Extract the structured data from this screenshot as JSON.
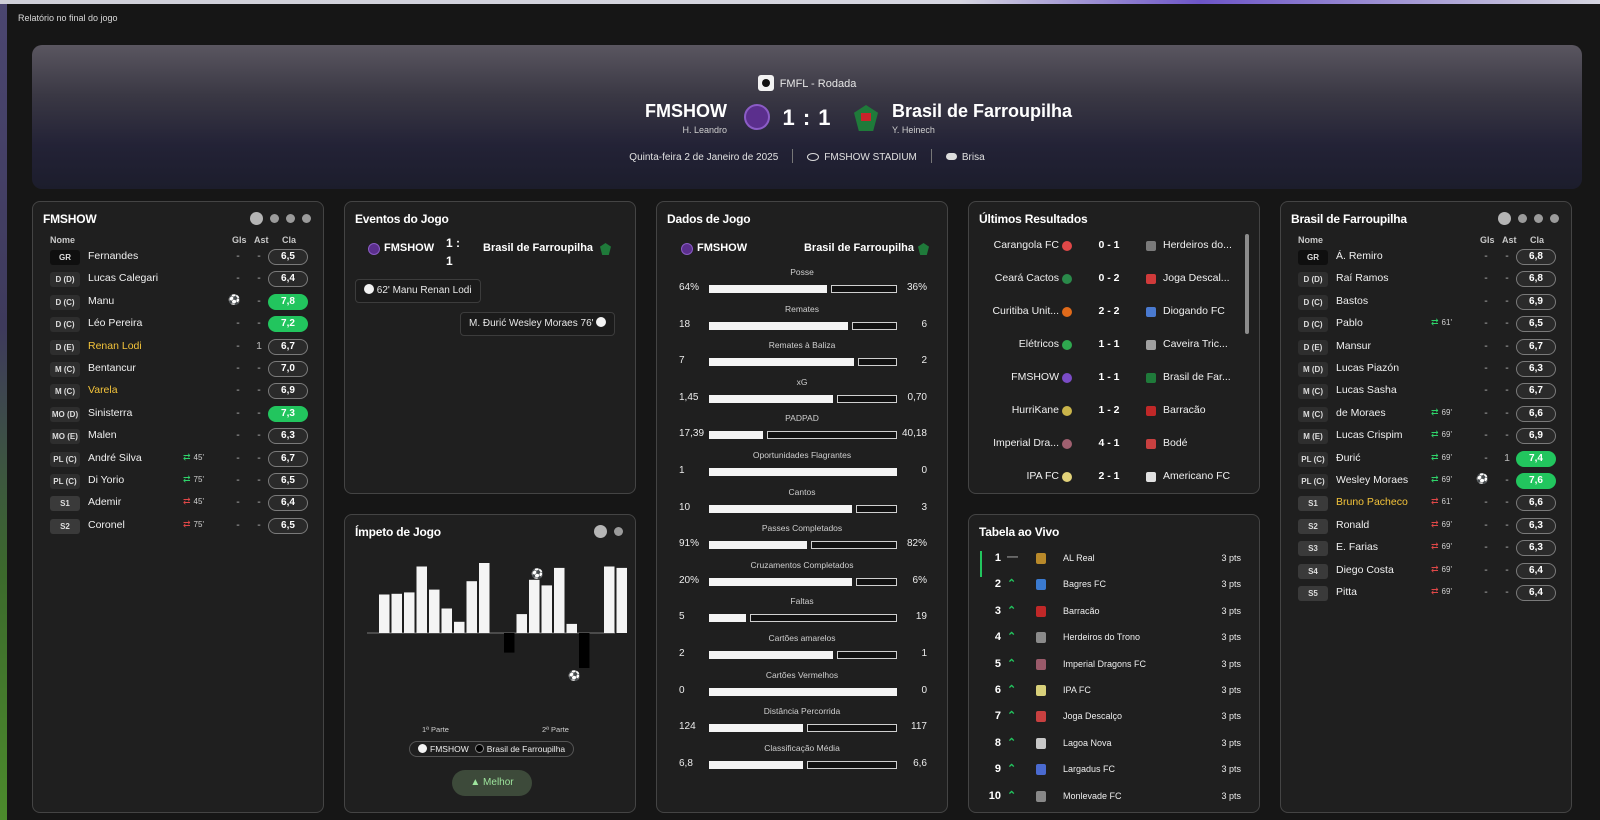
{
  "window_title": "Relatório no final do jogo",
  "header": {
    "competition": "FMFL - Rodada",
    "home": {
      "name": "FMSHOW",
      "manager": "H. Leandro"
    },
    "away": {
      "name": "Brasil de Farroupilha",
      "manager": "Y. Heinech"
    },
    "score": "1 : 1",
    "date": "Quinta-feira 2 de Janeiro de 2025",
    "stadium": "FMSHOW STADIUM",
    "weather": "Brisa"
  },
  "columns": {
    "name": "Nome",
    "goals": "Gls",
    "assists": "Ast",
    "rating": "Cla"
  },
  "home_lineup": {
    "title": "FMSHOW",
    "players": [
      {
        "pos": "GR",
        "name": "Fernandes",
        "gls": "-",
        "ast": "-",
        "rating": "6,5"
      },
      {
        "pos": "D (D)",
        "name": "Lucas Calegari",
        "gls": "-",
        "ast": "-",
        "rating": "6,4"
      },
      {
        "pos": "D (C)",
        "name": "Manu",
        "gls": "",
        "ast": "-",
        "rating": "7,8",
        "hi": true,
        "goal": true
      },
      {
        "pos": "D (C)",
        "name": "Léo Pereira",
        "gls": "-",
        "ast": "-",
        "rating": "7,2",
        "hi": true
      },
      {
        "pos": "D (E)",
        "name": "Renan Lodi",
        "gls": "-",
        "ast": "1",
        "rating": "6,7",
        "yellow": true
      },
      {
        "pos": "M (C)",
        "name": "Bentancur",
        "gls": "-",
        "ast": "-",
        "rating": "7,0"
      },
      {
        "pos": "M (C)",
        "name": "Varela",
        "gls": "-",
        "ast": "-",
        "rating": "6,9",
        "yellow": true
      },
      {
        "pos": "MO (D)",
        "name": "Sinisterra",
        "gls": "-",
        "ast": "-",
        "rating": "7,3",
        "hi": true
      },
      {
        "pos": "MO (E)",
        "name": "Malen",
        "gls": "-",
        "ast": "-",
        "rating": "6,3"
      },
      {
        "pos": "PL (C)",
        "name": "André Silva",
        "gls": "-",
        "ast": "-",
        "rating": "6,7",
        "sub": "in",
        "min": "45'"
      },
      {
        "pos": "PL (C)",
        "name": "Di Yorio",
        "gls": "-",
        "ast": "-",
        "rating": "6,5",
        "sub": "in",
        "min": "75'"
      },
      {
        "pos": "S1",
        "name": "Ademir",
        "gls": "-",
        "ast": "-",
        "rating": "6,4",
        "sub": "out",
        "min": "45'"
      },
      {
        "pos": "S2",
        "name": "Coronel",
        "gls": "-",
        "ast": "-",
        "rating": "6,5",
        "sub": "out",
        "min": "75'"
      }
    ]
  },
  "away_lineup": {
    "title": "Brasil de Farroupilha",
    "players": [
      {
        "pos": "GR",
        "name": "Á. Remiro",
        "gls": "-",
        "ast": "-",
        "rating": "6,8"
      },
      {
        "pos": "D (D)",
        "name": "Raí Ramos",
        "gls": "-",
        "ast": "-",
        "rating": "6,8"
      },
      {
        "pos": "D (C)",
        "name": "Bastos",
        "gls": "-",
        "ast": "-",
        "rating": "6,9"
      },
      {
        "pos": "D (C)",
        "name": "Pablo",
        "gls": "-",
        "ast": "-",
        "rating": "6,5",
        "sub": "in",
        "min": "61'"
      },
      {
        "pos": "D (E)",
        "name": "Mansur",
        "gls": "-",
        "ast": "-",
        "rating": "6,7"
      },
      {
        "pos": "M (D)",
        "name": "Lucas Piazón",
        "gls": "-",
        "ast": "-",
        "rating": "6,3"
      },
      {
        "pos": "M (C)",
        "name": "Lucas Sasha",
        "gls": "-",
        "ast": "-",
        "rating": "6,7"
      },
      {
        "pos": "M (C)",
        "name": "de Moraes",
        "gls": "-",
        "ast": "-",
        "rating": "6,6",
        "sub": "in",
        "min": "69'"
      },
      {
        "pos": "M (E)",
        "name": "Lucas Crispim",
        "gls": "-",
        "ast": "-",
        "rating": "6,9",
        "sub": "in",
        "min": "69'"
      },
      {
        "pos": "PL (C)",
        "name": "Đurić",
        "gls": "-",
        "ast": "1",
        "rating": "7,4",
        "hi": true,
        "sub": "in",
        "min": "69'"
      },
      {
        "pos": "PL (C)",
        "name": "Wesley Moraes",
        "gls": "",
        "ast": "-",
        "rating": "7,6",
        "hi": true,
        "sub": "in",
        "min": "69'",
        "goal": true
      },
      {
        "pos": "S1",
        "name": "Bruno Pacheco",
        "gls": "-",
        "ast": "-",
        "rating": "6,6",
        "yellow": true,
        "sub": "out",
        "min": "61'"
      },
      {
        "pos": "S2",
        "name": "Ronald",
        "gls": "-",
        "ast": "-",
        "rating": "6,3",
        "sub": "out",
        "min": "69'"
      },
      {
        "pos": "S3",
        "name": "E. Farias",
        "gls": "-",
        "ast": "-",
        "rating": "6,3",
        "sub": "out",
        "min": "69'"
      },
      {
        "pos": "S4",
        "name": "Diego Costa",
        "gls": "-",
        "ast": "-",
        "rating": "6,4",
        "sub": "out",
        "min": "69'"
      },
      {
        "pos": "S5",
        "name": "Pitta",
        "gls": "-",
        "ast": "-",
        "rating": "6,4",
        "sub": "out",
        "min": "69'"
      }
    ]
  },
  "events": {
    "title": "Eventos do Jogo",
    "home": "FMSHOW",
    "away": "Brasil de Farroupilha",
    "score": "1 :\n1",
    "home_event": "62'  Manu  Renan Lodi",
    "away_event": "M. Đurić  Wesley Moraes  76'"
  },
  "stats": {
    "title": "Dados de Jogo",
    "home": "FMSHOW",
    "away": "Brasil de Farroupilha",
    "rows": [
      {
        "label": "Posse",
        "home": "64%",
        "away": "36%",
        "h": 64,
        "a": 36
      },
      {
        "label": "Remates",
        "home": "18",
        "away": "6",
        "h": 75,
        "a": 25
      },
      {
        "label": "Remates à Baliza",
        "home": "7",
        "away": "2",
        "h": 78,
        "a": 22
      },
      {
        "label": "xG",
        "home": "1,45",
        "away": "0,70",
        "h": 67,
        "a": 33
      },
      {
        "label": "PADPAD",
        "home": "17,39",
        "away": "40,18",
        "h": 30,
        "a": 70
      },
      {
        "label": "Oportunidades Flagrantes",
        "home": "1",
        "away": "0",
        "h": 100,
        "a": 0
      },
      {
        "label": "Cantos",
        "home": "10",
        "away": "3",
        "h": 77,
        "a": 23
      },
      {
        "label": "Passes Completados",
        "home": "91%",
        "away": "82%",
        "h": 53,
        "a": 47
      },
      {
        "label": "Cruzamentos Completados",
        "home": "20%",
        "away": "6%",
        "h": 77,
        "a": 23
      },
      {
        "label": "Faltas",
        "home": "5",
        "away": "19",
        "h": 21,
        "a": 79
      },
      {
        "label": "Cartões amarelos",
        "home": "2",
        "away": "1",
        "h": 67,
        "a": 33
      },
      {
        "label": "Cartões Vermelhos",
        "home": "0",
        "away": "0",
        "h": 100,
        "a": 0
      },
      {
        "label": "Distância Percorrida",
        "home": "124",
        "away": "117",
        "h": 51,
        "a": 49
      },
      {
        "label": "Classificação Média",
        "home": "6,8",
        "away": "6,6",
        "h": 51,
        "a": 49
      }
    ]
  },
  "results": {
    "title": "Últimos Resultados",
    "rows": [
      {
        "home": "Carangola FC",
        "score": "0 - 1",
        "away": "Herdeiros do..."
      },
      {
        "home": "Ceará Cactos",
        "score": "0 - 2",
        "away": "Joga Descal..."
      },
      {
        "home": "Curitiba Unit...",
        "score": "2 - 2",
        "away": "Diogando FC"
      },
      {
        "home": "Elétricos",
        "score": "1 - 1",
        "away": "Caveira Tric..."
      },
      {
        "home": "FMSHOW",
        "score": "1 - 1",
        "away": "Brasil de Far..."
      },
      {
        "home": "HurriKane",
        "score": "1 - 2",
        "away": "Barracão"
      },
      {
        "home": "Imperial Dra...",
        "score": "4 - 1",
        "away": "Bodé"
      },
      {
        "home": "IPA FC",
        "score": "2 - 1",
        "away": "Americano FC"
      }
    ]
  },
  "table": {
    "title": "Tabela ao Vivo",
    "rows": [
      {
        "pos": "1",
        "name": "AL Real",
        "pts": "3 pts"
      },
      {
        "pos": "2",
        "name": "Bagres FC",
        "pts": "3 pts"
      },
      {
        "pos": "3",
        "name": "Barracão",
        "pts": "3 pts"
      },
      {
        "pos": "4",
        "name": "Herdeiros do Trono",
        "pts": "3 pts"
      },
      {
        "pos": "5",
        "name": "Imperial Dragons FC",
        "pts": "3 pts"
      },
      {
        "pos": "6",
        "name": "IPA FC",
        "pts": "3 pts"
      },
      {
        "pos": "7",
        "name": "Joga Descalço",
        "pts": "3 pts"
      },
      {
        "pos": "8",
        "name": "Lagoa Nova",
        "pts": "3 pts"
      },
      {
        "pos": "9",
        "name": "Largadus FC",
        "pts": "3 pts"
      },
      {
        "pos": "10",
        "name": "Monlevade FC",
        "pts": "3 pts"
      }
    ]
  },
  "momentum": {
    "title": "Ímpeto de Jogo",
    "first_half": "1ª Parte",
    "second_half": "2ª Parte",
    "legend_home": "FMSHOW",
    "legend_away": "Brasil de Farroupilha",
    "button": "Melhor",
    "values": [
      0.55,
      0.56,
      0.58,
      0.95,
      0.62,
      0.35,
      0.16,
      0.74,
      1.0,
      0,
      -0.28,
      0.27,
      0.76,
      0.68,
      0.93,
      0.13,
      -0.5,
      0,
      0.95,
      0.93
    ]
  },
  "colors": {
    "accent": "#22c55e",
    "yellow": "#f3c33a"
  }
}
